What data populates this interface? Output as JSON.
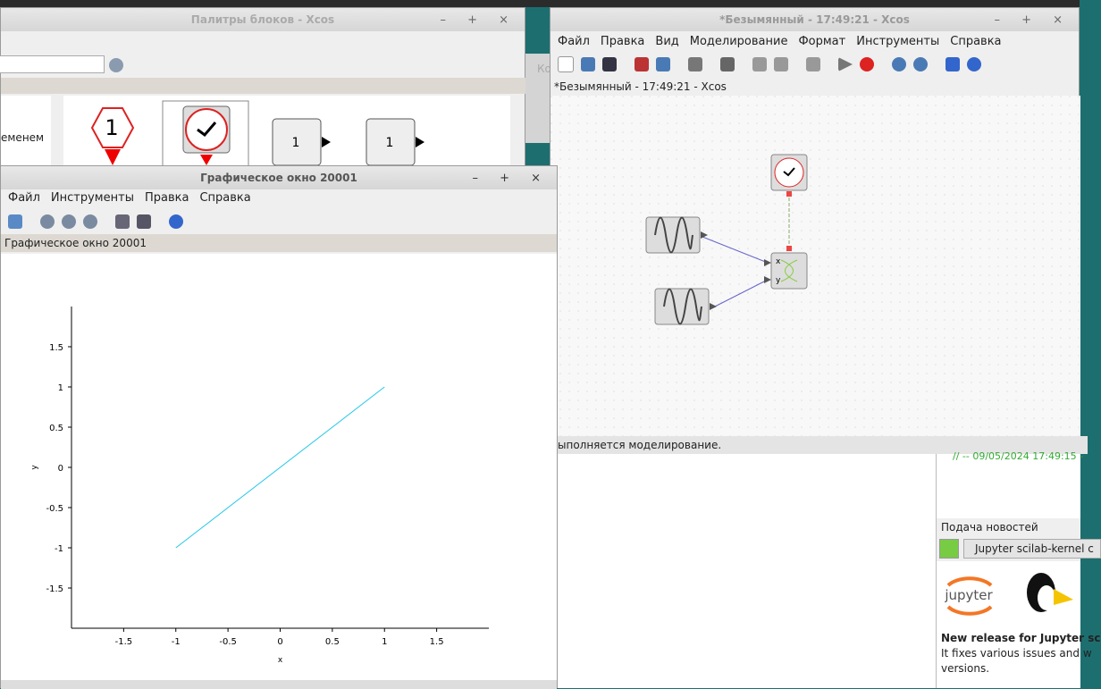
{
  "palette_window": {
    "title": "Палитры блоков - Xcos",
    "tree_item": "еменем",
    "blocks": [
      "1",
      "1",
      "1"
    ]
  },
  "background_window_label": "Ко",
  "xcos_window": {
    "title": "*Безымянный - 17:49:21 - Xcos",
    "menu": [
      "Файл",
      "Правка",
      "Вид",
      "Моделирование",
      "Формат",
      "Инструменты",
      "Справка"
    ],
    "tab": "*Безымянный - 17:49:21 - Xcos",
    "scope_ports": [
      "x",
      "y"
    ],
    "status": "ыполняется моделирование."
  },
  "console": {
    "line": "// -- 09/05/2024 17:49:15 -"
  },
  "news": {
    "title": "Подача новостей",
    "button": "Jupyter scilab-kernel c",
    "logo": "jupyter",
    "headline": "New release for Jupyter sc",
    "body": [
      "It fixes various issues and w",
      "versions."
    ]
  },
  "graphics_window": {
    "title": "Графическое окно 20001",
    "menu": [
      "Файл",
      "Инструменты",
      "Правка",
      "Справка"
    ],
    "tab": "Графическое окно 20001"
  },
  "chart_data": {
    "type": "line",
    "x_label": "x",
    "y_label": "y",
    "xlim": [
      -2,
      2
    ],
    "ylim": [
      -2,
      2
    ],
    "xticks": [
      -1.5,
      -1,
      -0.5,
      0,
      0.5,
      1,
      1.5
    ],
    "yticks": [
      -1.5,
      -1,
      -0.5,
      0,
      0.5,
      1,
      1.5
    ],
    "series": [
      {
        "color": "#22c8e8",
        "x": [
          -1,
          1
        ],
        "values": [
          -1,
          1
        ]
      }
    ]
  }
}
